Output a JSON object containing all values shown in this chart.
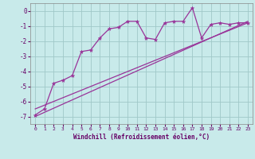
{
  "xlabel": "Windchill (Refroidissement éolien,°C)",
  "background_color": "#c8eaea",
  "grid_color": "#a0c8c8",
  "line_color": "#993399",
  "xlim": [
    -0.5,
    23.5
  ],
  "ylim": [
    -7.5,
    0.5
  ],
  "yticks": [
    0,
    -1,
    -2,
    -3,
    -4,
    -5,
    -6,
    -7
  ],
  "xticks": [
    0,
    1,
    2,
    3,
    4,
    5,
    6,
    7,
    8,
    9,
    10,
    11,
    12,
    13,
    14,
    15,
    16,
    17,
    18,
    19,
    20,
    21,
    22,
    23
  ],
  "data_x": [
    0,
    1,
    2,
    3,
    4,
    5,
    6,
    7,
    8,
    9,
    10,
    11,
    12,
    13,
    14,
    15,
    16,
    17,
    18,
    19,
    20,
    21,
    22,
    23
  ],
  "data_y": [
    -6.9,
    -6.5,
    -4.8,
    -4.6,
    -4.3,
    -2.7,
    -2.6,
    -1.8,
    -1.2,
    -1.1,
    -0.7,
    -0.7,
    -1.8,
    -1.9,
    -0.8,
    -0.7,
    -0.7,
    0.2,
    -1.8,
    -0.9,
    -0.8,
    -0.9,
    -0.8,
    -0.8
  ],
  "reg_line1_x": [
    0,
    23
  ],
  "reg_line1_y": [
    -7.0,
    -0.7
  ],
  "reg_line2_x": [
    0,
    23
  ],
  "reg_line2_y": [
    -6.5,
    -0.8
  ]
}
